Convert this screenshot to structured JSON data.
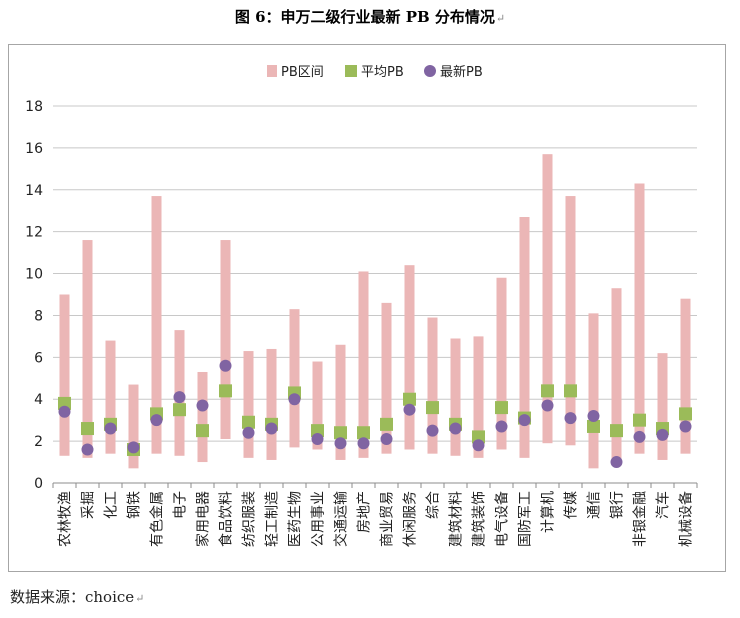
{
  "page": {
    "title": "图 6：申万二级行业最新 PB 分布情况",
    "source": "数据来源：choice"
  },
  "colors": {
    "range": "#ebb6b6",
    "avg": "#9bbb59",
    "latest": "#8064a2",
    "grid": "#c8c8c8"
  },
  "chart_data": {
    "type": "scatter",
    "title": "",
    "xlabel": "",
    "ylabel": "",
    "ylim": [
      0,
      18
    ],
    "yticks": [
      0,
      2,
      4,
      6,
      8,
      10,
      12,
      14,
      16,
      18
    ],
    "grid": true,
    "legend_position": "top",
    "legend": [
      "PB区间",
      "平均PB",
      "最新PB"
    ],
    "categories": [
      "农林牧渔",
      "采掘",
      "化工",
      "钢铁",
      "有色金属",
      "电子",
      "家用电器",
      "食品饮料",
      "纺织服装",
      "轻工制造",
      "医药生物",
      "公用事业",
      "交通运输",
      "房地产",
      "商业贸易",
      "休闲服务",
      "综合",
      "建筑材料",
      "建筑装饰",
      "电气设备",
      "国防军工",
      "计算机",
      "传媒",
      "通信",
      "银行",
      "非银金融",
      "汽车",
      "机械设备"
    ],
    "series": [
      {
        "name": "PB区间",
        "kind": "range",
        "low": [
          1.3,
          1.2,
          1.4,
          0.7,
          1.4,
          1.3,
          1.0,
          2.1,
          1.2,
          1.1,
          1.7,
          1.6,
          1.1,
          1.2,
          1.4,
          1.6,
          1.4,
          1.3,
          1.2,
          1.6,
          1.2,
          1.9,
          1.8,
          0.7,
          0.9,
          1.4,
          1.1,
          1.4
        ],
        "high": [
          9.0,
          11.6,
          6.8,
          4.7,
          13.7,
          7.3,
          5.3,
          11.6,
          6.3,
          6.4,
          8.3,
          5.8,
          6.6,
          10.1,
          8.6,
          10.4,
          7.9,
          6.9,
          7.0,
          9.8,
          12.7,
          15.7,
          13.7,
          8.1,
          9.3,
          14.3,
          6.2,
          8.8
        ]
      },
      {
        "name": "平均PB",
        "kind": "square",
        "values": [
          3.8,
          2.6,
          2.8,
          1.6,
          3.3,
          3.5,
          2.5,
          4.4,
          2.9,
          2.8,
          4.3,
          2.5,
          2.4,
          2.4,
          2.8,
          4.0,
          3.6,
          2.8,
          2.2,
          3.6,
          3.1,
          4.4,
          4.4,
          2.7,
          2.5,
          3.0,
          2.6,
          3.3
        ]
      },
      {
        "name": "最新PB",
        "kind": "circle",
        "values": [
          3.4,
          1.6,
          2.6,
          1.7,
          3.0,
          4.1,
          3.7,
          5.6,
          2.4,
          2.6,
          4.0,
          2.1,
          1.9,
          1.9,
          2.1,
          3.5,
          2.5,
          2.6,
          1.8,
          2.7,
          3.0,
          3.7,
          3.1,
          3.2,
          1.0,
          2.2,
          2.3,
          2.7
        ]
      }
    ]
  }
}
